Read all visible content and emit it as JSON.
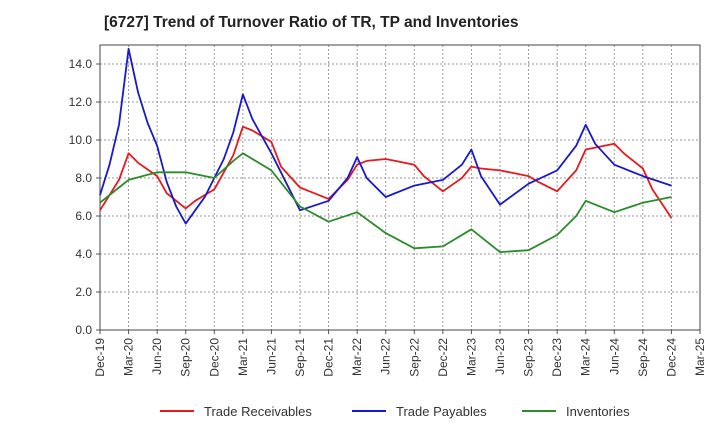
{
  "chart_data": {
    "type": "line",
    "title": "[6727]  Trend of Turnover Ratio of TR, TP and Inventories",
    "xlabel": "",
    "ylabel": "",
    "ylim": [
      0,
      15
    ],
    "yticks": [
      "0.0",
      "2.0",
      "4.0",
      "6.0",
      "8.0",
      "10.0",
      "12.0",
      "14.0"
    ],
    "ytick_values": [
      0,
      2,
      4,
      6,
      8,
      10,
      12,
      14
    ],
    "xticks": [
      "Dec-19",
      "Mar-20",
      "Jun-20",
      "Sep-20",
      "Dec-20",
      "Mar-21",
      "Jun-21",
      "Sep-21",
      "Dec-21",
      "Mar-22",
      "Jun-22",
      "Sep-22",
      "Dec-22",
      "Mar-23",
      "Jun-23",
      "Sep-23",
      "Dec-23",
      "Mar-24",
      "Jun-24",
      "Sep-24",
      "Dec-24",
      "Mar-25"
    ],
    "x_months": [
      "Dec-19",
      "Jan-20",
      "Feb-20",
      "Mar-20",
      "Apr-20",
      "May-20",
      "Jun-20",
      "Jul-20",
      "Aug-20",
      "Sep-20",
      "Oct-20",
      "Nov-20",
      "Dec-20",
      "Jan-21",
      "Feb-21",
      "Mar-21",
      "Apr-21",
      "May-21",
      "Jun-21",
      "Jul-21",
      "Aug-21",
      "Sep-21",
      "Oct-21",
      "Nov-21",
      "Dec-21",
      "Jan-22",
      "Feb-22",
      "Mar-22",
      "Apr-22",
      "May-22",
      "Jun-22",
      "Jul-22",
      "Aug-22",
      "Sep-22",
      "Oct-22",
      "Nov-22",
      "Dec-22",
      "Jan-23",
      "Feb-23",
      "Mar-23",
      "Apr-23",
      "May-23",
      "Jun-23",
      "Jul-23",
      "Aug-23",
      "Sep-23",
      "Oct-23",
      "Nov-23",
      "Dec-23",
      "Jan-24",
      "Feb-24",
      "Mar-24",
      "Apr-24",
      "May-24",
      "Jun-24",
      "Jul-24",
      "Aug-24",
      "Sep-24",
      "Oct-24",
      "Nov-24",
      "Dec-24",
      "Jan-25",
      "Feb-25",
      "Mar-25"
    ],
    "grid": true,
    "legend_position": "bottom",
    "series": [
      {
        "name": "Trade Receivables",
        "color": "#e8191c",
        "points": [
          [
            "Dec-19",
            6.3
          ],
          [
            "Feb-20",
            7.9
          ],
          [
            "Mar-20",
            9.3
          ],
          [
            "Apr-20",
            8.8
          ],
          [
            "Jun-20",
            8.1
          ],
          [
            "Jul-20",
            7.2
          ],
          [
            "Sep-20",
            6.4
          ],
          [
            "Oct-20",
            6.8
          ],
          [
            "Dec-20",
            7.4
          ],
          [
            "Feb-21",
            9.2
          ],
          [
            "Mar-21",
            10.7
          ],
          [
            "Apr-21",
            10.5
          ],
          [
            "Jun-21",
            9.9
          ],
          [
            "Jul-21",
            8.6
          ],
          [
            "Sep-21",
            7.5
          ],
          [
            "Oct-21",
            7.3
          ],
          [
            "Dec-21",
            6.9
          ],
          [
            "Feb-22",
            7.9
          ],
          [
            "Mar-22",
            8.7
          ],
          [
            "Apr-22",
            8.9
          ],
          [
            "Jun-22",
            9.0
          ],
          [
            "Jul-22",
            8.9
          ],
          [
            "Sep-22",
            8.7
          ],
          [
            "Oct-22",
            8.1
          ],
          [
            "Dec-22",
            7.3
          ],
          [
            "Feb-23",
            8.0
          ],
          [
            "Mar-23",
            8.6
          ],
          [
            "Apr-23",
            8.5
          ],
          [
            "Jun-23",
            8.4
          ],
          [
            "Jul-23",
            8.3
          ],
          [
            "Sep-23",
            8.1
          ],
          [
            "Oct-23",
            7.8
          ],
          [
            "Dec-23",
            7.3
          ],
          [
            "Feb-24",
            8.4
          ],
          [
            "Mar-24",
            9.5
          ],
          [
            "Apr-24",
            9.6
          ],
          [
            "Jun-24",
            9.8
          ],
          [
            "Jul-24",
            9.3
          ],
          [
            "Sep-24",
            8.5
          ],
          [
            "Oct-24",
            7.4
          ],
          [
            "Dec-24",
            5.9
          ]
        ]
      },
      {
        "name": "Trade Payables",
        "color": "#1919cc",
        "points": [
          [
            "Dec-19",
            7.1
          ],
          [
            "Jan-20",
            8.7
          ],
          [
            "Feb-20",
            10.8
          ],
          [
            "Mar-20",
            14.8
          ],
          [
            "Apr-20",
            12.5
          ],
          [
            "May-20",
            10.9
          ],
          [
            "Jun-20",
            9.7
          ],
          [
            "Jul-20",
            7.8
          ],
          [
            "Aug-20",
            6.5
          ],
          [
            "Sep-20",
            5.6
          ],
          [
            "Oct-20",
            6.3
          ],
          [
            "Nov-20",
            7.0
          ],
          [
            "Dec-20",
            8.0
          ],
          [
            "Jan-21",
            9.0
          ],
          [
            "Feb-21",
            10.4
          ],
          [
            "Mar-21",
            12.4
          ],
          [
            "Apr-21",
            11.1
          ],
          [
            "Jun-21",
            9.3
          ],
          [
            "Sep-21",
            6.3
          ],
          [
            "Dec-21",
            6.8
          ],
          [
            "Feb-22",
            8.0
          ],
          [
            "Mar-22",
            9.1
          ],
          [
            "Apr-22",
            8.0
          ],
          [
            "Jun-22",
            7.0
          ],
          [
            "Sep-22",
            7.6
          ],
          [
            "Dec-22",
            7.9
          ],
          [
            "Feb-23",
            8.7
          ],
          [
            "Mar-23",
            9.5
          ],
          [
            "Apr-23",
            8.1
          ],
          [
            "Jun-23",
            6.6
          ],
          [
            "Sep-23",
            7.7
          ],
          [
            "Dec-23",
            8.4
          ],
          [
            "Feb-24",
            9.7
          ],
          [
            "Mar-24",
            10.8
          ],
          [
            "Apr-24",
            9.8
          ],
          [
            "Jun-24",
            8.7
          ],
          [
            "Sep-24",
            8.1
          ],
          [
            "Dec-24",
            7.6
          ]
        ]
      },
      {
        "name": "Inventories",
        "color": "#2a8c2a",
        "points": [
          [
            "Dec-19",
            6.7
          ],
          [
            "Feb-20",
            7.5
          ],
          [
            "Mar-20",
            7.9
          ],
          [
            "Jun-20",
            8.3
          ],
          [
            "Sep-20",
            8.3
          ],
          [
            "Dec-20",
            8.0
          ],
          [
            "Feb-21",
            8.9
          ],
          [
            "Mar-21",
            9.3
          ],
          [
            "Jun-21",
            8.4
          ],
          [
            "Sep-21",
            6.5
          ],
          [
            "Dec-21",
            5.7
          ],
          [
            "Mar-22",
            6.2
          ],
          [
            "Jun-22",
            5.1
          ],
          [
            "Sep-22",
            4.3
          ],
          [
            "Dec-22",
            4.4
          ],
          [
            "Mar-23",
            5.3
          ],
          [
            "Jun-23",
            4.1
          ],
          [
            "Sep-23",
            4.2
          ],
          [
            "Dec-23",
            5.0
          ],
          [
            "Feb-24",
            6.0
          ],
          [
            "Mar-24",
            6.8
          ],
          [
            "Jun-24",
            6.2
          ],
          [
            "Sep-24",
            6.7
          ],
          [
            "Dec-24",
            7.0
          ]
        ]
      }
    ]
  }
}
